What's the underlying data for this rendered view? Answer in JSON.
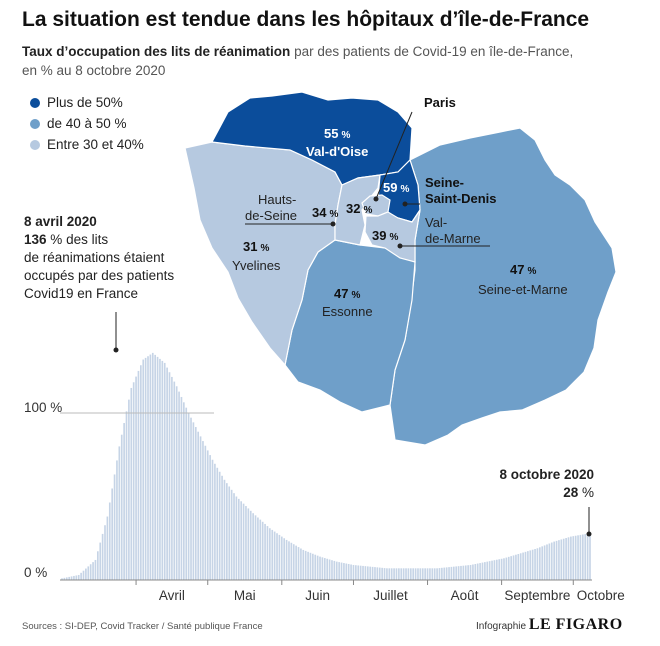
{
  "header": {
    "title": "La situation est tendue dans les hôpitaux d’île-de-France",
    "subtitle_bold": "Taux d’occupation des lits de réanimation",
    "subtitle_rest": " par des patients de Covid-19 en île-de-France,",
    "subtitle_line2": "en % au 8 octobre 2020"
  },
  "legend": [
    {
      "label": "Plus de 50%",
      "color": "#0b4d9b"
    },
    {
      "label": "de 40 à 50 %",
      "color": "#6f9fc9"
    },
    {
      "label": "Entre 30 et 40%",
      "color": "#b6c9e0"
    }
  ],
  "map": {
    "departments": [
      {
        "name": "Val-d'Oise",
        "value": "55",
        "unit": "%",
        "color": "#0b4d9b"
      },
      {
        "name": "Seine-Saint-Denis",
        "name_line1": "Seine-",
        "name_line2": "Saint-Denis",
        "value": "59",
        "unit": "%",
        "color": "#0b4d9b"
      },
      {
        "name": "Paris",
        "value": "32",
        "unit": "%",
        "color": "#b6c9e0"
      },
      {
        "name": "Hauts-de-Seine",
        "name_line1": "Hauts-",
        "name_line2": "de-Seine",
        "value": "34",
        "unit": "%",
        "color": "#b6c9e0"
      },
      {
        "name": "Val-de-Marne",
        "name_line1": "Val-",
        "name_line2": "de-Marne",
        "value": "39",
        "unit": "%",
        "color": "#b6c9e0"
      },
      {
        "name": "Yvelines",
        "value": "31",
        "unit": "%",
        "color": "#b6c9e0"
      },
      {
        "name": "Essonne",
        "value": "47",
        "unit": "%",
        "color": "#6f9fc9"
      },
      {
        "name": "Seine-et-Marne",
        "value": "47",
        "unit": "%",
        "color": "#6f9fc9"
      }
    ]
  },
  "annotations": {
    "peak": {
      "date": "8 avril 2020",
      "value": "136",
      "unit": "%",
      "text_line1": " des lits",
      "text_line2": "de réanimations étaient",
      "text_line3": "occupés par des patients",
      "text_line4": "Covid19 en France"
    },
    "latest": {
      "date": "8 octobre 2020",
      "value": "28",
      "unit": "%"
    }
  },
  "chart_data": {
    "type": "bar",
    "title": "",
    "xlabel": "",
    "ylabel": "",
    "ylim": [
      0,
      140
    ],
    "y_ticks": [
      {
        "value": 0,
        "label": "0 %"
      },
      {
        "value": 100,
        "label": "100 %"
      }
    ],
    "x_month_labels": [
      "Avril",
      "Mai",
      "Juin",
      "Juillet",
      "Août",
      "Septembre",
      "Octobre"
    ],
    "start_date": "2020-03-01",
    "end_date": "2020-10-08",
    "bar_color": "#c6d4e6",
    "series": [
      {
        "name": "",
        "keypoints": [
          [
            "2020-03-01",
            1
          ],
          [
            "2020-03-08",
            3
          ],
          [
            "2020-03-15",
            12
          ],
          [
            "2020-03-20",
            38
          ],
          [
            "2020-03-25",
            80
          ],
          [
            "2020-03-30",
            115
          ],
          [
            "2020-04-04",
            132
          ],
          [
            "2020-04-08",
            136
          ],
          [
            "2020-04-13",
            130
          ],
          [
            "2020-04-18",
            116
          ],
          [
            "2020-04-23",
            100
          ],
          [
            "2020-04-28",
            86
          ],
          [
            "2020-05-03",
            72
          ],
          [
            "2020-05-08",
            60
          ],
          [
            "2020-05-13",
            50
          ],
          [
            "2020-05-20",
            40
          ],
          [
            "2020-05-27",
            31
          ],
          [
            "2020-06-03",
            24
          ],
          [
            "2020-06-10",
            18
          ],
          [
            "2020-06-17",
            14
          ],
          [
            "2020-06-24",
            11
          ],
          [
            "2020-07-01",
            9
          ],
          [
            "2020-07-08",
            8
          ],
          [
            "2020-07-15",
            7
          ],
          [
            "2020-07-22",
            7
          ],
          [
            "2020-07-29",
            7
          ],
          [
            "2020-08-05",
            7
          ],
          [
            "2020-08-12",
            8
          ],
          [
            "2020-08-19",
            9
          ],
          [
            "2020-08-26",
            11
          ],
          [
            "2020-09-02",
            13
          ],
          [
            "2020-09-09",
            16
          ],
          [
            "2020-09-16",
            19
          ],
          [
            "2020-09-23",
            23
          ],
          [
            "2020-09-30",
            26
          ],
          [
            "2020-10-08",
            28
          ]
        ]
      }
    ]
  },
  "footer": {
    "sources": "Sources : SI-DEP, Covid Tracker / Santé publique France",
    "infographie": "Infographie",
    "brand": "LE FIGARO"
  }
}
